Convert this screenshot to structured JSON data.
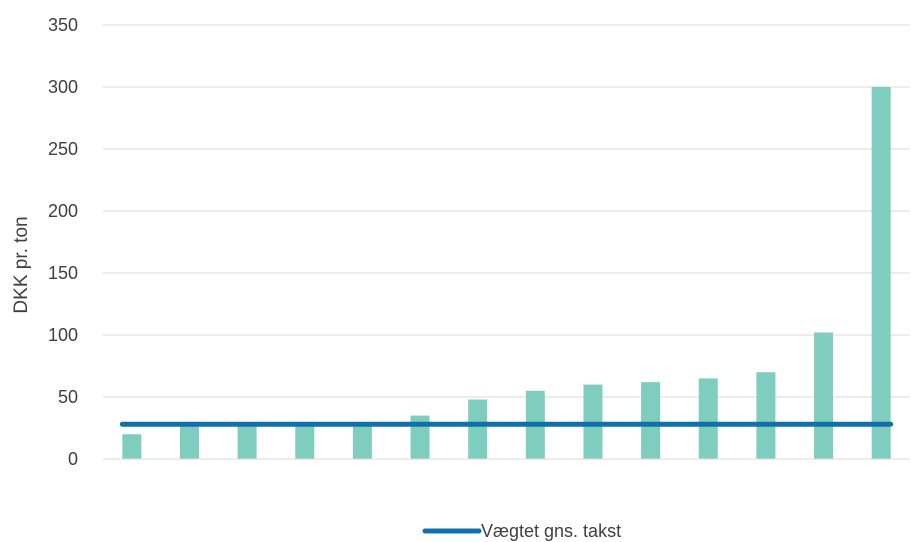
{
  "chart_data": {
    "type": "bar",
    "ylabel": "DKK pr. ton",
    "xlabel": "",
    "ylim": [
      0,
      350
    ],
    "yticks": [
      0,
      50,
      100,
      150,
      200,
      250,
      300,
      350
    ],
    "grid": true,
    "legend_position": "bottom",
    "values": [
      20,
      28,
      28,
      28,
      28,
      35,
      48,
      55,
      60,
      62,
      65,
      70,
      102,
      300
    ],
    "bar_color": "#7fcdbf",
    "reference_line": {
      "name": "Vægtet gns. takst",
      "value": 28,
      "color": "#1170aa"
    }
  }
}
